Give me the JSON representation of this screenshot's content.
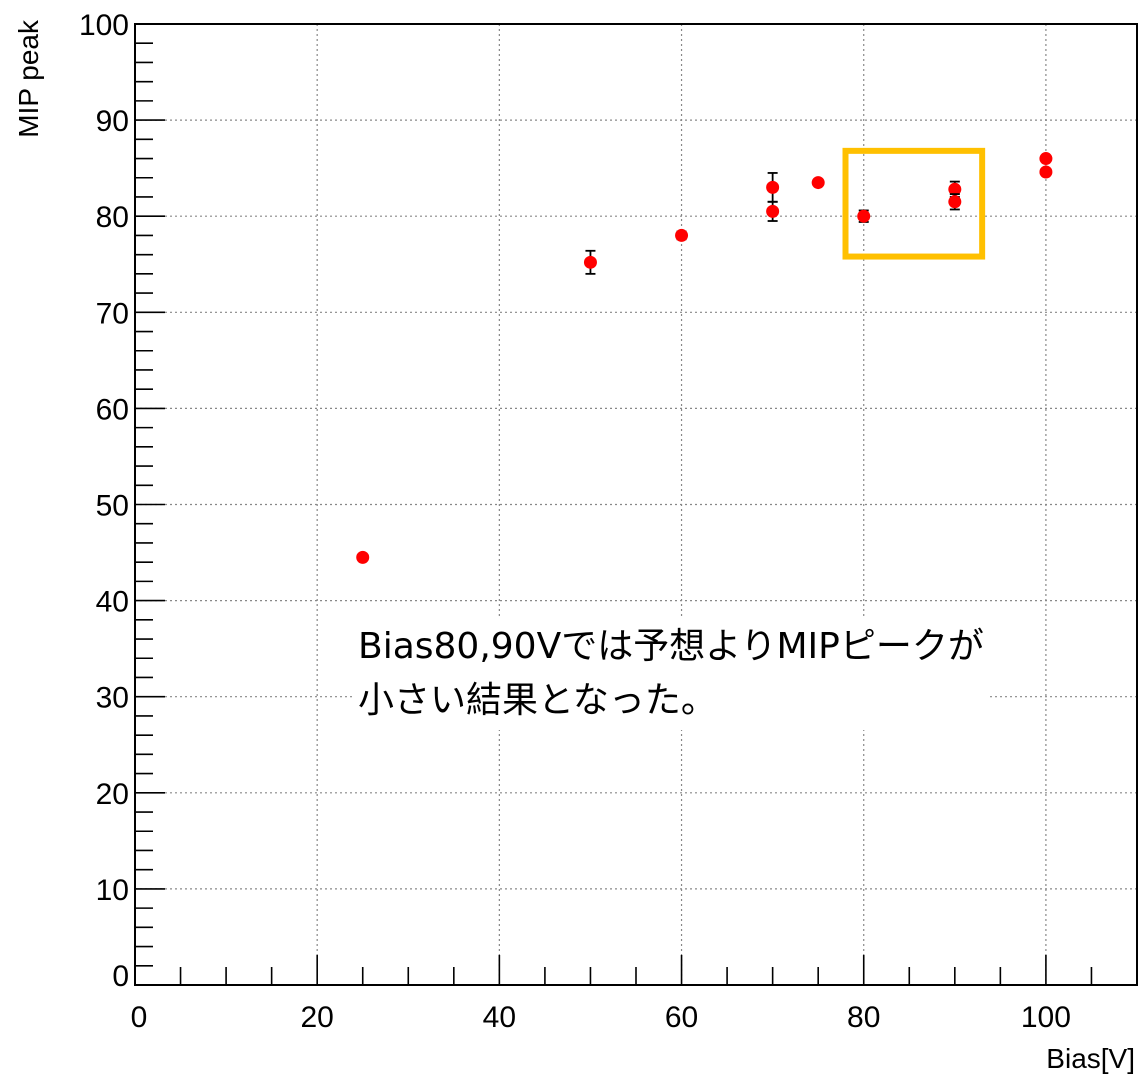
{
  "chart_data": {
    "type": "scatter",
    "xlabel": "Bias[V]",
    "ylabel": "MIP peak",
    "xlim": [
      0,
      110
    ],
    "ylim": [
      0,
      100
    ],
    "x_ticks": [
      "0",
      "20",
      "40",
      "60",
      "80",
      "100"
    ],
    "y_ticks": [
      "0",
      "10",
      "20",
      "30",
      "40",
      "50",
      "60",
      "70",
      "80",
      "90",
      "100"
    ],
    "grid": true,
    "series": [
      {
        "marker_color": "#ff0000",
        "points": [
          {
            "x": 25,
            "y": 44.5,
            "err": 0.3
          },
          {
            "x": 50,
            "y": 75.2,
            "err": 1.2
          },
          {
            "x": 60,
            "y": 78.0,
            "err": 0.4
          },
          {
            "x": 70,
            "y": 83.0,
            "err": 1.5
          },
          {
            "x": 70,
            "y": 80.5,
            "err": 1.0
          },
          {
            "x": 75,
            "y": 83.5,
            "err": 0.3
          },
          {
            "x": 80,
            "y": 80.0,
            "err": 0.6
          },
          {
            "x": 90,
            "y": 82.8,
            "err": 0.8
          },
          {
            "x": 90,
            "y": 81.5,
            "err": 0.8
          },
          {
            "x": 100,
            "y": 86.0,
            "err": 0.3
          },
          {
            "x": 100,
            "y": 84.6,
            "err": 0.3
          }
        ]
      }
    ],
    "highlight_box": {
      "x_range": [
        78,
        93
      ],
      "y_range": [
        75.8,
        86.8
      ],
      "color": "#ffc000"
    },
    "annotation": [
      "Bias80,90Vでは予想よりMIPピークが",
      "小さい結果となった。"
    ]
  }
}
